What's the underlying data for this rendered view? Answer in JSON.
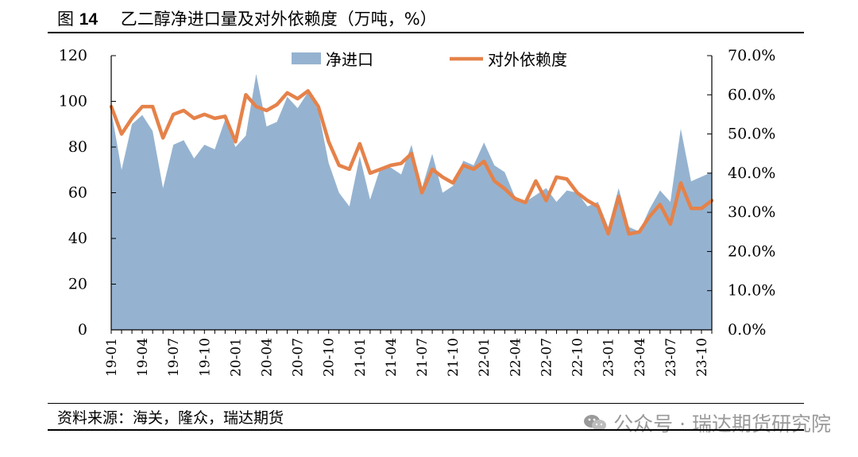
{
  "figure": {
    "label": "图",
    "number": "14",
    "title": "乙二醇净进口量及对外依赖度（万吨，%）"
  },
  "source_text": "资料来源：海关，隆众，瑞达期货",
  "watermark_text": "公众号 · 瑞达期货研究院",
  "watermark_icon": "wechat-icon",
  "colors": {
    "area": "#95b3d0",
    "line": "#e5824a",
    "axis": "#000000"
  },
  "chart_data": {
    "type": "area",
    "categories": [
      "19-01",
      "19-02",
      "19-03",
      "19-04",
      "19-05",
      "19-06",
      "19-07",
      "19-08",
      "19-09",
      "19-10",
      "19-11",
      "19-12",
      "20-01",
      "20-02",
      "20-03",
      "20-04",
      "20-05",
      "20-06",
      "20-07",
      "20-08",
      "20-09",
      "20-10",
      "20-11",
      "20-12",
      "21-01",
      "21-02",
      "21-03",
      "21-04",
      "21-05",
      "21-06",
      "21-07",
      "21-08",
      "21-09",
      "21-10",
      "21-11",
      "21-12",
      "22-01",
      "22-02",
      "22-03",
      "22-04",
      "22-05",
      "22-06",
      "22-07",
      "22-08",
      "22-09",
      "22-10",
      "22-11",
      "22-12",
      "23-01",
      "23-02",
      "23-03",
      "23-04",
      "23-05",
      "23-06",
      "23-07",
      "23-08",
      "23-09",
      "23-10",
      "23-11"
    ],
    "x_tick_labels": [
      "19-01",
      "19-04",
      "19-07",
      "19-10",
      "20-01",
      "20-04",
      "20-07",
      "20-10",
      "21-01",
      "21-04",
      "21-07",
      "21-10",
      "22-01",
      "22-04",
      "22-07",
      "22-10",
      "23-01",
      "23-04",
      "23-07",
      "23-10"
    ],
    "y_left": {
      "min": 0,
      "max": 120,
      "ticks": [
        "0",
        "20",
        "40",
        "60",
        "80",
        "100",
        "120"
      ]
    },
    "y_right": {
      "min": 0,
      "max": 0.7,
      "ticks": [
        "0.0%",
        "10.0%",
        "20.0%",
        "30.0%",
        "40.0%",
        "50.0%",
        "60.0%",
        "70.0%"
      ]
    },
    "legend_position": "top-center",
    "grid": false,
    "series": [
      {
        "name": "净进口",
        "type": "area",
        "axis": "left",
        "values": [
          96,
          70,
          90,
          94,
          87,
          62,
          81,
          83,
          75,
          81,
          79,
          92,
          80,
          85,
          112,
          89,
          91,
          102,
          97,
          104,
          96,
          73,
          60,
          54,
          76,
          57,
          71,
          71,
          68,
          81,
          62,
          77,
          60,
          63,
          74,
          72,
          82,
          72,
          69,
          58,
          56,
          59,
          62,
          56,
          61,
          60,
          54,
          56,
          45,
          62,
          45,
          43,
          53,
          61,
          56,
          88,
          65,
          67,
          69
        ]
      },
      {
        "name": "对外依赖度",
        "type": "line",
        "axis": "right",
        "values": [
          0.57,
          0.5,
          0.54,
          0.57,
          0.57,
          0.49,
          0.55,
          0.56,
          0.54,
          0.55,
          0.54,
          0.545,
          0.48,
          0.6,
          0.57,
          0.56,
          0.575,
          0.605,
          0.59,
          0.61,
          0.57,
          0.48,
          0.42,
          0.41,
          0.475,
          0.4,
          0.41,
          0.42,
          0.425,
          0.45,
          0.35,
          0.41,
          0.39,
          0.375,
          0.42,
          0.41,
          0.43,
          0.38,
          0.36,
          0.335,
          0.325,
          0.38,
          0.33,
          0.39,
          0.385,
          0.35,
          0.33,
          0.315,
          0.245,
          0.34,
          0.245,
          0.25,
          0.29,
          0.32,
          0.27,
          0.375,
          0.31,
          0.31,
          0.33
        ]
      }
    ]
  }
}
